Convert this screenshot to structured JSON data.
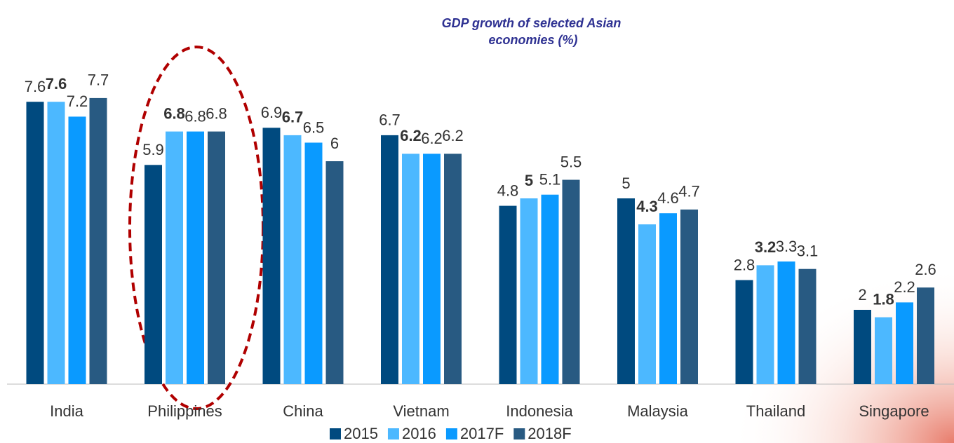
{
  "chart_data": {
    "type": "bar",
    "title": [
      "GDP growth of selected Asian",
      "economies (%)"
    ],
    "categories": [
      "India",
      "Philippines",
      "China",
      "Vietnam",
      "Indonesia",
      "Malaysia",
      "Thailand",
      "Singapore"
    ],
    "series": [
      {
        "name": "2015",
        "color": "#004a7f",
        "values": [
          7.6,
          5.9,
          6.9,
          6.7,
          4.8,
          5.0,
          2.8,
          2.0
        ]
      },
      {
        "name": "2016",
        "color": "#4cb8ff",
        "values": [
          7.6,
          6.8,
          6.7,
          6.2,
          5.0,
          4.3,
          3.2,
          1.8
        ]
      },
      {
        "name": "2017F",
        "color": "#0a9aff",
        "values": [
          7.2,
          6.8,
          6.5,
          6.2,
          5.1,
          4.6,
          3.3,
          2.2
        ]
      },
      {
        "name": "2018F",
        "color": "#285a82",
        "values": [
          7.7,
          6.8,
          6.0,
          6.2,
          5.5,
          4.7,
          3.1,
          2.6
        ]
      }
    ]
  }
}
